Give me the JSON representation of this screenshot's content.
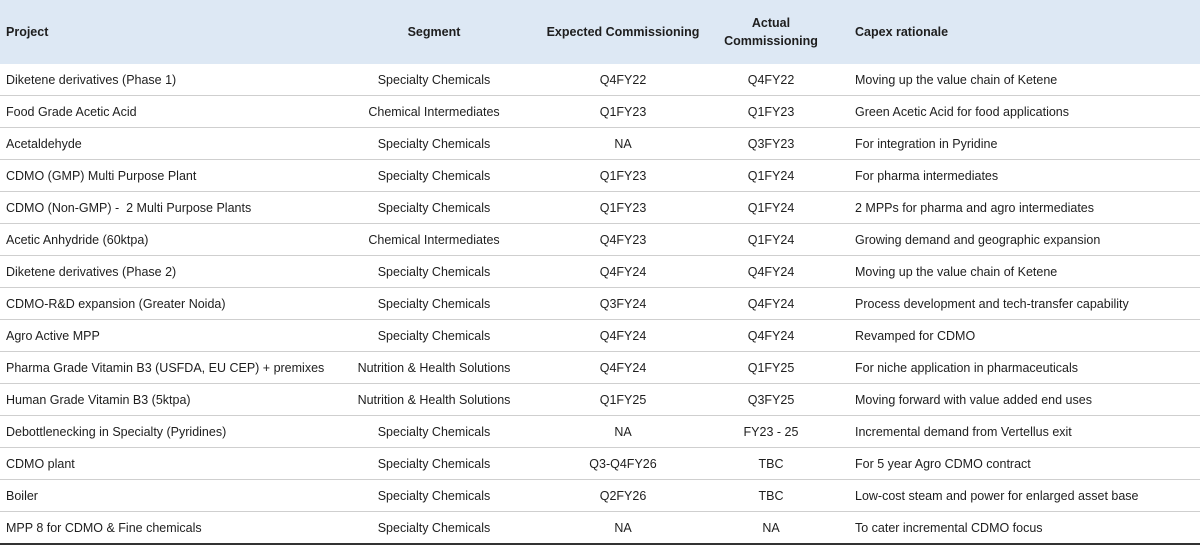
{
  "table": {
    "header": [
      "Project",
      "Segment",
      "Expected Commissioning",
      "Actual Commissioning",
      "Capex rationale"
    ],
    "rows": [
      [
        "Diketene derivatives (Phase 1)",
        "Specialty Chemicals",
        "Q4FY22",
        "Q4FY22",
        "Moving up the value chain of Ketene"
      ],
      [
        "Food Grade Acetic Acid",
        "Chemical Intermediates",
        "Q1FY23",
        "Q1FY23",
        "Green Acetic Acid for food applications"
      ],
      [
        "Acetaldehyde",
        "Specialty Chemicals",
        "NA",
        "Q3FY23",
        "For integration in Pyridine"
      ],
      [
        "CDMO (GMP) Multi Purpose Plant",
        "Specialty Chemicals",
        "Q1FY23",
        "Q1FY24",
        "For pharma intermediates"
      ],
      [
        "CDMO (Non-GMP) -  2 Multi Purpose Plants",
        "Specialty Chemicals",
        "Q1FY23",
        "Q1FY24",
        "2 MPPs for pharma and agro intermediates"
      ],
      [
        "Acetic Anhydride (60ktpa)",
        "Chemical Intermediates",
        "Q4FY23",
        "Q1FY24",
        "Growing demand and geographic expansion"
      ],
      [
        "Diketene derivatives (Phase 2)",
        "Specialty Chemicals",
        "Q4FY24",
        "Q4FY24",
        "Moving up the value chain of Ketene"
      ],
      [
        "CDMO-R&D expansion (Greater Noida)",
        "Specialty Chemicals",
        "Q3FY24",
        "Q4FY24",
        "Process development and tech-transfer capability"
      ],
      [
        "Agro Active MPP",
        "Specialty Chemicals",
        "Q4FY24",
        "Q4FY24",
        "Revamped for CDMO"
      ],
      [
        "Pharma Grade Vitamin B3 (USFDA, EU CEP) + premixes",
        "Nutrition & Health Solutions",
        "Q4FY24",
        "Q1FY25",
        "For niche application in pharmaceuticals"
      ],
      [
        "Human Grade Vitamin B3 (5ktpa)",
        "Nutrition & Health Solutions",
        "Q1FY25",
        "Q3FY25",
        "Moving forward with value added end uses"
      ],
      [
        "Debottlenecking in Specialty (Pyridines)",
        "Specialty Chemicals",
        "NA",
        "FY23 - 25",
        "Incremental demand from Vertellus exit"
      ],
      [
        "CDMO plant",
        "Specialty Chemicals",
        "Q3-Q4FY26",
        "TBC",
        "For 5 year Agro CDMO contract"
      ],
      [
        "Boiler",
        "Specialty Chemicals",
        "Q2FY26",
        "TBC",
        "Low-cost steam and power for enlarged asset base"
      ],
      [
        "MPP 8 for CDMO & Fine chemicals",
        "Specialty Chemicals",
        "NA",
        "NA",
        "To cater incremental CDMO focus"
      ]
    ]
  }
}
